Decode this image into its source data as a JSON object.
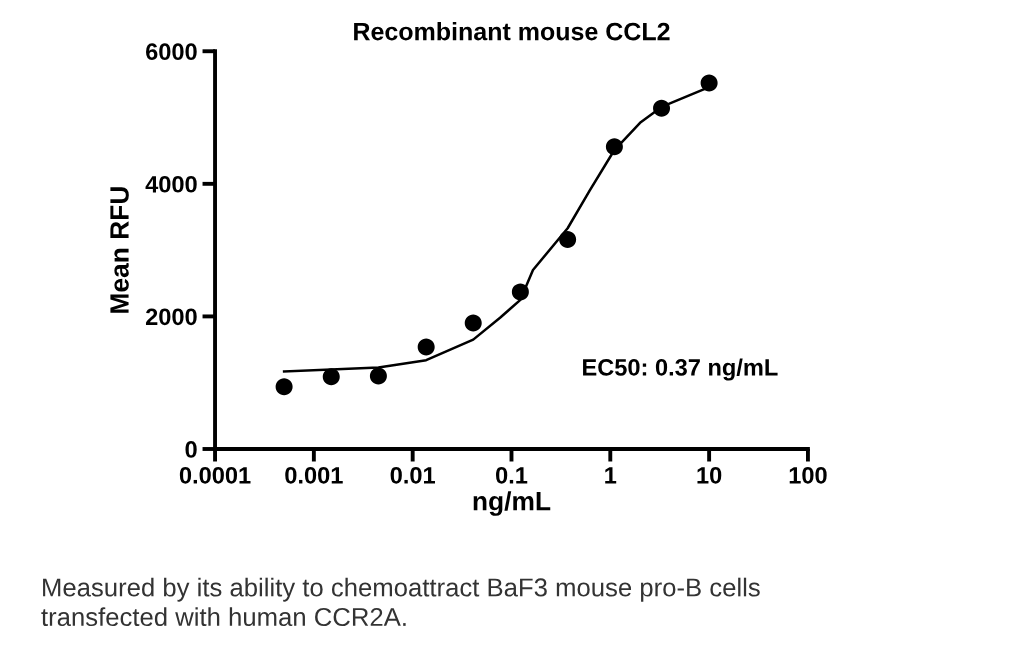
{
  "chart_data": {
    "type": "scatter",
    "title": "Recombinant mouse CCL2",
    "xlabel": "ng/mL",
    "ylabel": "Mean RFU",
    "log": "x",
    "grid": false,
    "legend": false,
    "xlim": [
      0.0001,
      100
    ],
    "xticks": [
      0.0001,
      0.001,
      0.01,
      0.1,
      1,
      10,
      100
    ],
    "ylim": [
      0,
      6000
    ],
    "yticks": [
      0,
      2000,
      4000,
      6000
    ],
    "x": [
      0.0005,
      0.0015,
      0.0045,
      0.0137,
      0.041,
      0.123,
      0.37,
      1.1,
      3.3,
      10
    ],
    "series": [
      {
        "color": "#000000",
        "marker": "circle",
        "values": [
          940,
          1090,
          1100,
          1540,
          1900,
          2370,
          3160,
          4560,
          5140,
          5520
        ]
      },
      {
        "type": "line",
        "color": "#000000",
        "marker": "none",
        "line_style": "solid",
        "x": [
          0.0005,
          0.0045,
          0.0137,
          0.041,
          0.0766,
          0.123,
          0.165,
          0.37,
          0.62,
          1.1,
          2.0,
          3.3,
          10
        ],
        "values": [
          1170,
          1230,
          1340,
          1650,
          1980,
          2250,
          2700,
          3330,
          3900,
          4510,
          4920,
          5160,
          5460
        ]
      }
    ],
    "annotations": [
      "EC50: 0.37 ng/mL",
      "Measured by its ability to chemoattract BaF3 mouse pro-B cells\ntransfected with human CCR2A."
    ]
  }
}
